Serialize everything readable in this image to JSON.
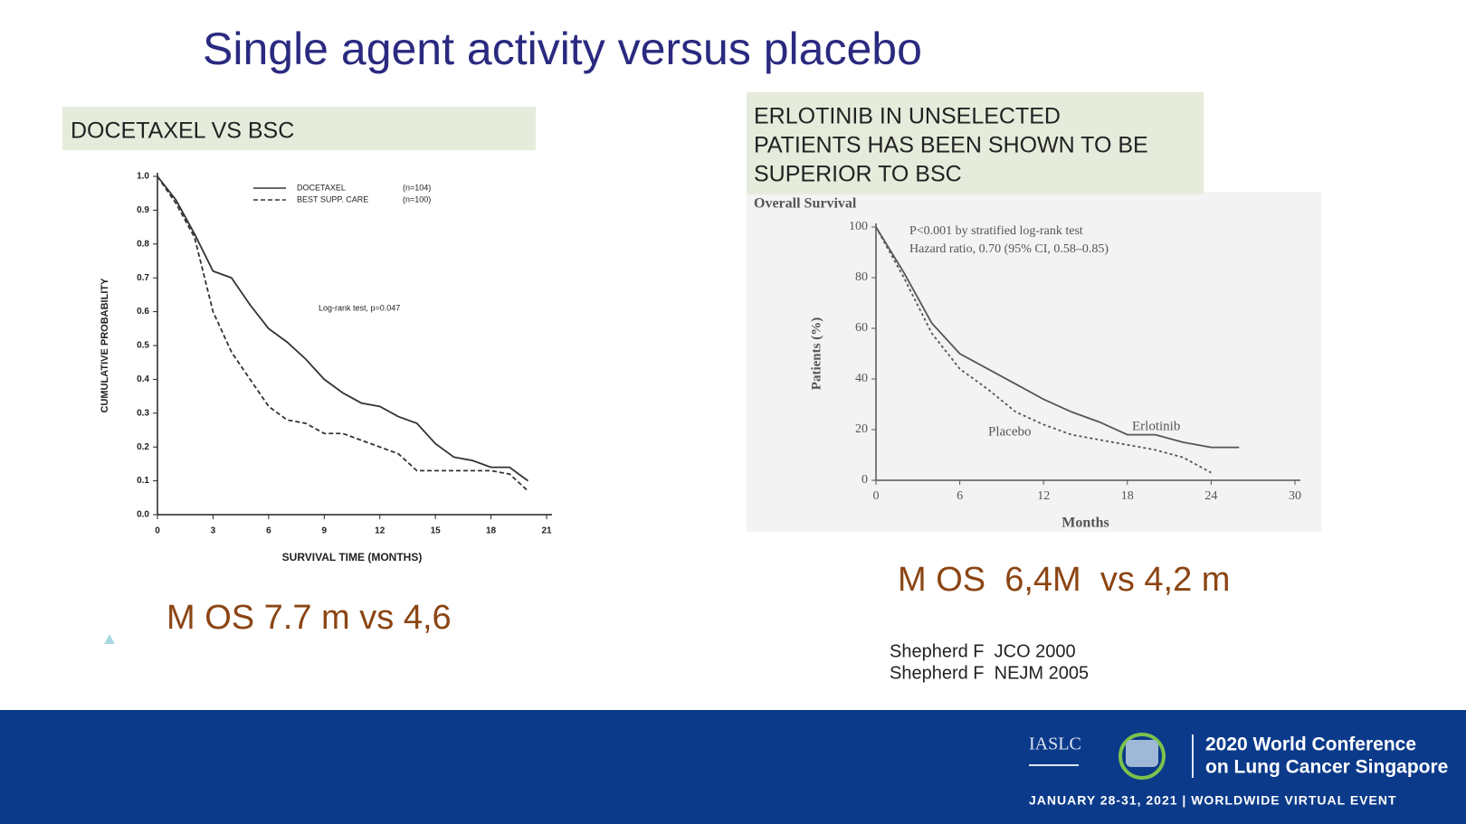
{
  "title": "Single agent activity versus placebo",
  "left_header": "DOCETAXEL VS BSC",
  "right_header": [
    "ERLOTINIB IN UNSELECTED",
    "PATIENTS HAS BEEN  SHOWN TO BE",
    "SUPERIOR TO BSC"
  ],
  "left_result": "M OS 7.7 m vs 4,6",
  "right_result": "M OS  6,4M  vs 4,2 m",
  "references": [
    "Shepherd F  JCO 2000",
    "Shepherd F  NEJM 2005"
  ],
  "footer": {
    "org": "IASLC",
    "conference": [
      "2020 World Conference",
      "on Lung Cancer Singapore"
    ],
    "dates": "JANUARY 28-31, 2021 | WORLDWIDE VIRTUAL EVENT"
  },
  "chart_data": [
    {
      "type": "line",
      "x_label": "SURVIVAL TIME (MONTHS)",
      "y_label": "CUMULATIVE PROBABILITY",
      "annotations": [
        "Log-rank test, p=0.047"
      ],
      "legend_notes": [
        "(n=104)",
        "(n=100)"
      ],
      "x": [
        0,
        1,
        2,
        3,
        4,
        5,
        6,
        7,
        8,
        9,
        10,
        11,
        12,
        13,
        14,
        15,
        16,
        17,
        18,
        19,
        20
      ],
      "series": [
        {
          "name": "DOCETAXEL",
          "color": "#333333",
          "line_style": "solid",
          "values": [
            1.0,
            0.93,
            0.83,
            0.72,
            0.7,
            0.62,
            0.55,
            0.51,
            0.46,
            0.4,
            0.36,
            0.33,
            0.32,
            0.29,
            0.27,
            0.21,
            0.17,
            0.16,
            0.14,
            0.14,
            0.1
          ]
        },
        {
          "name": "BEST SUPP. CARE",
          "color": "#333333",
          "line_style": "dashed",
          "values": [
            1.0,
            0.92,
            0.82,
            0.6,
            0.48,
            0.4,
            0.32,
            0.28,
            0.27,
            0.24,
            0.24,
            0.22,
            0.2,
            0.18,
            0.13,
            0.13,
            0.13,
            0.13,
            0.13,
            0.12,
            0.07
          ]
        }
      ],
      "xlim": [
        0,
        21
      ],
      "xticks": [
        0,
        3,
        6,
        9,
        12,
        15,
        18,
        21
      ],
      "ylim": [
        0,
        1
      ],
      "yticks": [
        {
          "value": 0,
          "label": "0.0"
        },
        0.1,
        0.2,
        0.3,
        0.4,
        0.5,
        0.6,
        0.7,
        0.8,
        0.9,
        {
          "value": 1,
          "label": "1.0"
        }
      ],
      "legend": "top-right"
    },
    {
      "type": "line",
      "title": "Overall Survival",
      "x_label": "Months",
      "y_label": "Patients (%)",
      "annotations": [
        "P<0.001 by stratified log-rank test",
        "Hazard ratio, 0.70 (95% CI, 0.58–0.85)"
      ],
      "x": [
        0,
        2,
        4,
        6,
        8,
        10,
        12,
        14,
        16,
        18,
        20,
        22,
        24,
        26
      ],
      "series": [
        {
          "name": "Erlotinib",
          "color": "#555555",
          "line_style": "solid",
          "values": [
            100,
            82,
            62,
            50,
            44,
            38,
            32,
            27,
            23,
            18,
            18,
            15,
            13,
            13
          ]
        },
        {
          "name": "Placebo",
          "color": "#555555",
          "line_style": "dashed",
          "values": [
            100,
            80,
            58,
            44,
            36,
            27,
            22,
            18,
            16,
            14,
            12,
            9,
            3,
            null
          ]
        }
      ],
      "xlim": [
        0,
        30
      ],
      "xticks": [
        0,
        6,
        12,
        18,
        24,
        30
      ],
      "ylim": [
        0,
        100
      ],
      "yticks": [
        0,
        20,
        40,
        60,
        80,
        100
      ],
      "legend": "inline"
    }
  ]
}
